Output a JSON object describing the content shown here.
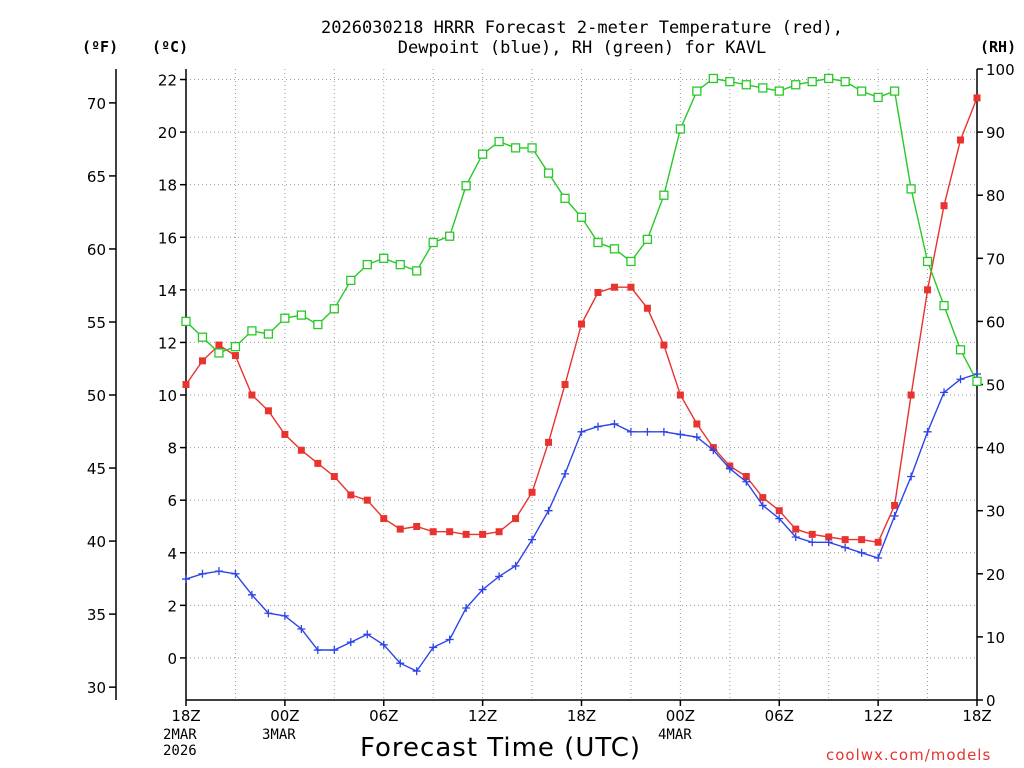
{
  "title_line1": "2026030218 HRRR Forecast 2-meter Temperature (red),",
  "title_line2": "Dewpoint (blue), RH (green) for KAVL",
  "unit_left_f": "(ºF)",
  "unit_left_c": "(ºC)",
  "unit_right": "(RH)",
  "x_axis_title": "Forecast Time (UTC)",
  "credit": "coolwx.com/models",
  "date_labels": [
    {
      "line1": "2MAR",
      "line2": "2026"
    },
    {
      "line1": "3MAR",
      "line2": ""
    },
    {
      "line1": "4MAR",
      "line2": ""
    }
  ],
  "chart_data": {
    "type": "line",
    "title": "2026030218 HRRR Forecast 2-meter Temperature (red), Dewpoint (blue), RH (green) for KAVL",
    "xlabel": "Forecast Time (UTC)",
    "x_tick_labels": [
      "18Z",
      "00Z",
      "06Z",
      "12Z",
      "18Z",
      "00Z",
      "06Z",
      "12Z",
      "18Z"
    ],
    "x_range_hours": [
      0,
      48
    ],
    "x": [
      0,
      1,
      2,
      3,
      4,
      5,
      6,
      7,
      8,
      9,
      10,
      11,
      12,
      13,
      14,
      15,
      16,
      17,
      18,
      19,
      20,
      21,
      22,
      23,
      24,
      25,
      26,
      27,
      28,
      29,
      30,
      31,
      32,
      33,
      34,
      35,
      36,
      37,
      38,
      39,
      40,
      41,
      42,
      43,
      44,
      45,
      46,
      47,
      48
    ],
    "y_left_celsius": {
      "label": "(ºC)",
      "range": [
        -1.6,
        22.4
      ],
      "ticks": [
        0,
        2,
        4,
        6,
        8,
        10,
        12,
        14,
        16,
        18,
        20,
        22
      ]
    },
    "y_left_fahrenheit": {
      "label": "(ºF)",
      "range": [
        29.12,
        72.32
      ],
      "ticks": [
        30,
        35,
        40,
        45,
        50,
        55,
        60,
        65,
        70
      ]
    },
    "y_right_rh": {
      "label": "(RH)",
      "range": [
        0,
        100
      ],
      "ticks": [
        0,
        10,
        20,
        30,
        40,
        50,
        60,
        70,
        80,
        90,
        100
      ]
    },
    "grid": true,
    "series": [
      {
        "name": "Temperature",
        "color": "#e8332e",
        "marker": "filled-square",
        "axis": "celsius",
        "values": [
          10.4,
          11.3,
          11.9,
          11.5,
          10.0,
          9.4,
          8.5,
          7.9,
          7.4,
          6.9,
          6.2,
          6.0,
          5.3,
          4.9,
          5.0,
          4.8,
          4.8,
          4.7,
          4.7,
          4.8,
          5.3,
          6.3,
          8.2,
          10.4,
          12.7,
          13.9,
          14.1,
          14.1,
          13.3,
          11.9,
          10.0,
          8.9,
          8.0,
          7.3,
          6.9,
          6.1,
          5.6,
          4.9,
          4.7,
          4.6,
          4.5,
          4.5,
          4.4,
          5.8,
          10.0,
          14.0,
          17.2,
          19.7,
          21.3
        ]
      },
      {
        "name": "Dewpoint",
        "color": "#2d44e8",
        "marker": "plus",
        "axis": "celsius",
        "values": [
          3.0,
          3.2,
          3.3,
          3.2,
          2.4,
          1.7,
          1.6,
          1.1,
          0.3,
          0.3,
          0.6,
          0.9,
          0.5,
          -0.2,
          -0.5,
          0.4,
          0.7,
          1.9,
          2.6,
          3.1,
          3.5,
          4.5,
          5.6,
          7.0,
          8.6,
          8.8,
          8.9,
          8.6,
          8.6,
          8.6,
          8.5,
          8.4,
          7.9,
          7.2,
          6.7,
          5.8,
          5.3,
          4.6,
          4.4,
          4.4,
          4.2,
          4.0,
          3.8,
          5.4,
          6.9,
          8.6,
          10.1,
          10.6,
          10.8
        ]
      },
      {
        "name": "RH",
        "color": "#28c828",
        "marker": "open-square",
        "axis": "rh",
        "values": [
          60,
          57.5,
          55,
          56,
          58.5,
          58,
          60.5,
          61,
          59.5,
          62,
          66.5,
          69,
          70,
          69,
          68,
          72.5,
          73.5,
          81.5,
          86.5,
          88.5,
          87.5,
          87.5,
          83.5,
          79.5,
          76.5,
          72.5,
          71.5,
          69.5,
          73,
          80,
          90.5,
          96.5,
          98.5,
          98,
          97.5,
          97,
          96.5,
          97.5,
          98,
          98.5,
          98,
          96.5,
          95.5,
          96.5,
          81,
          69.5,
          62.5,
          55.5,
          50.5
        ]
      }
    ]
  }
}
